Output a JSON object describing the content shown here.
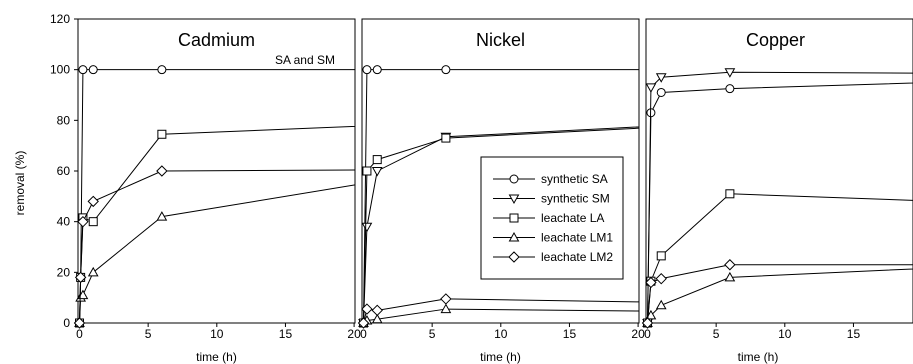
{
  "chart_data": [
    {
      "type": "line",
      "title": "Cadmium",
      "annotation": "SA and SM",
      "xlabel": "time (h)",
      "ylabel": "removal (%)",
      "xlim": [
        0,
        24
      ],
      "ylim": [
        0,
        120
      ],
      "xticks": [
        0,
        5,
        10,
        15,
        20
      ],
      "yticks": [
        0,
        20,
        40,
        60,
        80,
        100,
        120
      ],
      "grid": false,
      "series": [
        {
          "name": "synthetic SA",
          "marker": "circle",
          "x": [
            0,
            0.083,
            0.25,
            1,
            6,
            24
          ],
          "y": [
            0,
            18,
            100,
            100,
            100,
            100
          ]
        },
        {
          "name": "leachate LA",
          "marker": "square",
          "x": [
            0,
            0.083,
            0.25,
            1,
            6,
            24
          ],
          "y": [
            0,
            18,
            41.5,
            40,
            74.5,
            78.5
          ]
        },
        {
          "name": "leachate LM1",
          "marker": "triangle-up",
          "x": [
            0,
            0.083,
            0.25,
            1,
            6,
            24
          ],
          "y": [
            0,
            10,
            11,
            20,
            42,
            58
          ]
        },
        {
          "name": "leachate LM2",
          "marker": "diamond",
          "x": [
            0,
            0.083,
            0.25,
            1,
            6,
            24
          ],
          "y": [
            0,
            18,
            40,
            48,
            60,
            60.5
          ]
        }
      ]
    },
    {
      "type": "line",
      "title": "Nickel",
      "xlabel": "time (h)",
      "xlim": [
        0,
        24
      ],
      "ylim": [
        0,
        120
      ],
      "xticks": [
        0,
        5,
        10,
        15,
        20
      ],
      "grid": false,
      "legend": {
        "position": "center-right",
        "entries": [
          {
            "label": "synthetic SA",
            "marker": "circle"
          },
          {
            "label": "synthetic SM",
            "marker": "triangle-down"
          },
          {
            "label": "leachate LA",
            "marker": "square"
          },
          {
            "label": "leachate LM1",
            "marker": "triangle-up"
          },
          {
            "label": "leachate LM2",
            "marker": "diamond"
          }
        ]
      },
      "series": [
        {
          "name": "synthetic SA",
          "marker": "circle",
          "x": [
            0,
            0.25,
            1,
            6,
            24
          ],
          "y": [
            0,
            100,
            100,
            100,
            100
          ]
        },
        {
          "name": "synthetic SM",
          "marker": "triangle-down",
          "x": [
            0,
            0.25,
            1,
            6,
            24
          ],
          "y": [
            0,
            38,
            60,
            73.5,
            78.5
          ]
        },
        {
          "name": "leachate LA",
          "marker": "square",
          "x": [
            0,
            0.25,
            1,
            6,
            24
          ],
          "y": [
            0,
            60,
            64.5,
            73,
            78
          ]
        },
        {
          "name": "leachate LM1",
          "marker": "triangle-up",
          "x": [
            0,
            0.25,
            1,
            6,
            24
          ],
          "y": [
            0,
            1,
            1.5,
            5.5,
            4.5
          ]
        },
        {
          "name": "leachate LM2",
          "marker": "diamond",
          "x": [
            0,
            0.25,
            1,
            6,
            24
          ],
          "y": [
            0,
            5.5,
            5,
            9.5,
            8
          ]
        }
      ]
    },
    {
      "type": "line",
      "title": "Copper",
      "xlabel": "time (h)",
      "xlim": [
        0,
        24
      ],
      "ylim": [
        0,
        120
      ],
      "xticks": [
        0,
        5,
        10,
        15,
        20
      ],
      "grid": false,
      "series": [
        {
          "name": "synthetic SA",
          "marker": "circle",
          "x": [
            0,
            0.25,
            1,
            6,
            24
          ],
          "y": [
            0,
            83,
            91,
            92.5,
            95.5
          ]
        },
        {
          "name": "synthetic SM",
          "marker": "triangle-down",
          "x": [
            0,
            0.25,
            1,
            6,
            24
          ],
          "y": [
            0,
            93,
            97,
            99,
            98.5
          ]
        },
        {
          "name": "leachate LA",
          "marker": "square",
          "x": [
            0,
            0.25,
            1,
            6,
            24
          ],
          "y": [
            0,
            16.5,
            26.5,
            51,
            47.5
          ]
        },
        {
          "name": "leachate LM1",
          "marker": "triangle-up",
          "x": [
            0,
            0.25,
            1,
            6,
            24
          ],
          "y": [
            0,
            3,
            7,
            18,
            22.5
          ]
        },
        {
          "name": "leachate LM2",
          "marker": "diamond",
          "x": [
            0,
            0.25,
            1,
            6,
            24
          ],
          "y": [
            0,
            16,
            17.5,
            23,
            23
          ]
        }
      ]
    }
  ]
}
